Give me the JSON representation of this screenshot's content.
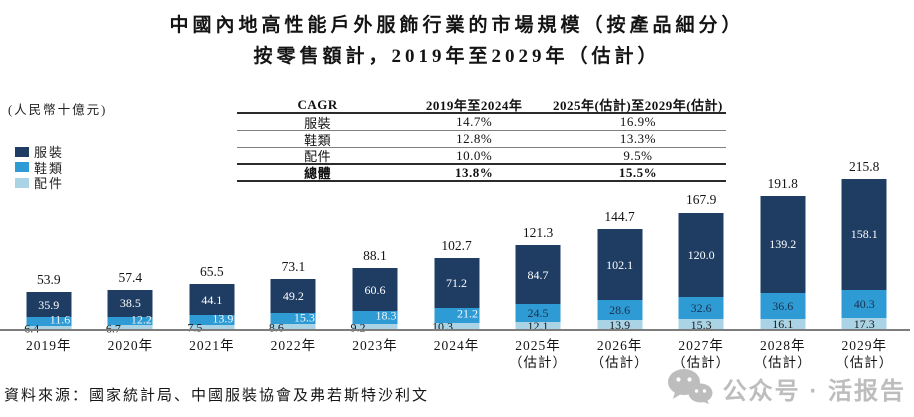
{
  "title": {
    "line1": "中國內地高性能戶外服飾行業的市場規模（按產品細分）",
    "line2": "按零售額計，2019年至2029年（估計）"
  },
  "unit_label": "(人民幣十億元)",
  "legend": {
    "items": [
      {
        "label": "服裝",
        "color": "#1f3c63"
      },
      {
        "label": "鞋類",
        "color": "#2f9bd4"
      },
      {
        "label": "配件",
        "color": "#aad4e6"
      }
    ]
  },
  "cagr_table": {
    "header": [
      "CAGR",
      "2019年至2024年",
      "2025年(估計)至2029年(估計)"
    ],
    "rows": [
      {
        "label": "服裝",
        "col1": "14.7%",
        "col2": "16.9%"
      },
      {
        "label": "鞋類",
        "col1": "12.8%",
        "col2": "13.3%"
      },
      {
        "label": "配件",
        "col1": "10.0%",
        "col2": "9.5%"
      },
      {
        "label": "總體",
        "col1": "13.8%",
        "col2": "15.5%"
      }
    ]
  },
  "chart_data": {
    "type": "bar",
    "stacked": true,
    "title": "中國內地高性能戶外服飾行業的市場規模（按產品細分）按零售額計，2019年至2029年（估計）",
    "ylabel": "(人民幣十億元)",
    "legend_position": "left",
    "grid": false,
    "categories": [
      "2019年",
      "2020年",
      "2021年",
      "2022年",
      "2023年",
      "2024年",
      "2025年",
      "2026年",
      "2027年",
      "2028年",
      "2029年"
    ],
    "category_sublabels": [
      "",
      "",
      "",
      "",
      "",
      "",
      "（估計）",
      "（估計）",
      "（估計）",
      "（估計）",
      "（估計）"
    ],
    "series": [
      {
        "name": "服裝",
        "color": "#1f3c63",
        "values": [
          35.9,
          38.5,
          44.1,
          49.2,
          60.6,
          71.2,
          84.7,
          102.1,
          120.0,
          139.2,
          158.1
        ]
      },
      {
        "name": "鞋類",
        "color": "#2f9bd4",
        "values": [
          11.6,
          12.2,
          13.9,
          15.3,
          18.3,
          21.2,
          24.5,
          28.6,
          32.6,
          36.6,
          40.3
        ]
      },
      {
        "name": "配件",
        "color": "#aad4e6",
        "values": [
          6.4,
          6.7,
          7.5,
          8.6,
          9.2,
          10.3,
          12.1,
          13.9,
          15.3,
          16.1,
          17.3
        ]
      }
    ],
    "totals": [
      53.9,
      57.4,
      65.5,
      73.1,
      88.1,
      102.7,
      121.3,
      144.7,
      167.9,
      191.8,
      215.8
    ]
  },
  "source": "資料來源：國家統計局、中國服裝協會及弗若斯特沙利文",
  "watermark": {
    "text": "公众号 · 活报告",
    "icon": "wechat-icon",
    "color": "#bdbdbd"
  }
}
